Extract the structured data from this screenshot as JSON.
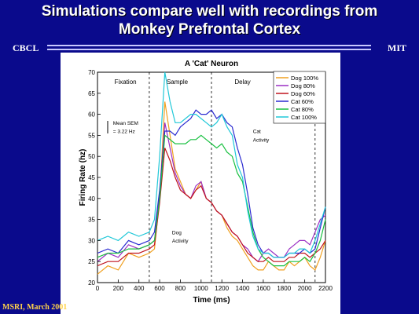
{
  "slide": {
    "title_line1": "Simulations compare well with recordings from",
    "title_line2": "Monkey Prefrontal Cortex",
    "left_brand": "CBCL",
    "right_brand": "MIT",
    "footer": "MSRI, March 2001",
    "colors": {
      "background": "#0a0a8c",
      "title": "#ffffff",
      "footer": "#ffd24a"
    }
  },
  "chart_data": {
    "type": "line",
    "title": "A 'Cat' Neuron",
    "xlabel": "Time (ms)",
    "ylabel": "Firing Rate (hz)",
    "xlim": [
      0,
      2200
    ],
    "ylim": [
      20,
      70
    ],
    "xticks": [
      0,
      200,
      400,
      600,
      800,
      1000,
      1200,
      1400,
      1600,
      1800,
      2000,
      2200
    ],
    "yticks": [
      20,
      25,
      30,
      35,
      40,
      45,
      50,
      55,
      60,
      65,
      70
    ],
    "grid": false,
    "legend": "top-right",
    "epochs": [
      {
        "label": "Fixation",
        "x": 270
      },
      {
        "label": "Sample",
        "x": 770
      },
      {
        "label": "Delay",
        "x": 1400
      }
    ],
    "boundaries": [
      500,
      1100,
      2100
    ],
    "annotations": [
      {
        "text": "Mean SEM",
        "x": 150,
        "y": 57.5
      },
      {
        "text": "= 3.22 Hz",
        "x": 150,
        "y": 55.5
      },
      {
        "text": "Cat",
        "x": 1500,
        "y": 55.5
      },
      {
        "text": "Activity",
        "x": 1500,
        "y": 53.5
      },
      {
        "text": "Dog",
        "x": 720,
        "y": 31.5
      },
      {
        "text": "Activity",
        "x": 720,
        "y": 29.5
      }
    ],
    "series": [
      {
        "name": "Dog 100%",
        "color": "#f0a020",
        "x": [
          0,
          100,
          200,
          300,
          400,
          500,
          550,
          600,
          650,
          700,
          750,
          800,
          850,
          900,
          950,
          1000,
          1050,
          1100,
          1150,
          1200,
          1250,
          1300,
          1350,
          1400,
          1450,
          1500,
          1550,
          1600,
          1650,
          1700,
          1750,
          1800,
          1850,
          1900,
          1950,
          2000,
          2050,
          2100,
          2150,
          2200
        ],
        "y": [
          22,
          24,
          23,
          27,
          26,
          27,
          28,
          40,
          63,
          55,
          47,
          44,
          41,
          40,
          42,
          44,
          40,
          39,
          37,
          36,
          33,
          31,
          30,
          28,
          26,
          24,
          23,
          23,
          25,
          24,
          23,
          23,
          25,
          24,
          25,
          26,
          24,
          23,
          26,
          30
        ]
      },
      {
        "name": "Dog 80%",
        "color": "#9a2fc4",
        "x": [
          0,
          100,
          200,
          300,
          400,
          500,
          550,
          600,
          650,
          700,
          750,
          800,
          850,
          900,
          950,
          1000,
          1050,
          1100,
          1150,
          1200,
          1250,
          1300,
          1350,
          1400,
          1450,
          1500,
          1550,
          1600,
          1650,
          1700,
          1750,
          1800,
          1850,
          1900,
          1950,
          2000,
          2050,
          2100,
          2150,
          2200
        ],
        "y": [
          25,
          27,
          26,
          29,
          28,
          29,
          30,
          41,
          58,
          52,
          46,
          43,
          41,
          40,
          43,
          44,
          40,
          39,
          37,
          36,
          34,
          32,
          31,
          29,
          28,
          26,
          25,
          27,
          28,
          27,
          26,
          26,
          28,
          29,
          30,
          30,
          29,
          32,
          35,
          36
        ]
      },
      {
        "name": "Dog 60%",
        "color": "#c0141e",
        "x": [
          0,
          100,
          200,
          300,
          400,
          500,
          550,
          600,
          650,
          700,
          750,
          800,
          850,
          900,
          950,
          1000,
          1050,
          1100,
          1150,
          1200,
          1250,
          1300,
          1350,
          1400,
          1450,
          1500,
          1550,
          1600,
          1650,
          1700,
          1750,
          1800,
          1850,
          1900,
          1950,
          2000,
          2050,
          2100,
          2150,
          2200
        ],
        "y": [
          24,
          25,
          25,
          27,
          27,
          28,
          29,
          39,
          52,
          49,
          45,
          42,
          41,
          40,
          42,
          43,
          40,
          39,
          37,
          36,
          34,
          32,
          31,
          29,
          27,
          26,
          25,
          25,
          26,
          25,
          25,
          25,
          26,
          26,
          27,
          27,
          26,
          27,
          28,
          30
        ]
      },
      {
        "name": "Cat 60%",
        "color": "#2a2ad0",
        "x": [
          0,
          100,
          200,
          300,
          400,
          500,
          550,
          600,
          650,
          700,
          750,
          800,
          850,
          900,
          950,
          1000,
          1050,
          1100,
          1150,
          1200,
          1250,
          1300,
          1350,
          1400,
          1450,
          1500,
          1550,
          1600,
          1650,
          1700,
          1750,
          1800,
          1850,
          1900,
          1950,
          2000,
          2050,
          2100,
          2150,
          2200
        ],
        "y": [
          27,
          28,
          27,
          30,
          29,
          30,
          32,
          42,
          56,
          56,
          55,
          57,
          58,
          59,
          61,
          60,
          60,
          61,
          59,
          60,
          58,
          57,
          52,
          48,
          41,
          33,
          29,
          27,
          27,
          26,
          26,
          26,
          27,
          27,
          27,
          28,
          27,
          28,
          33,
          38
        ]
      },
      {
        "name": "Cat 80%",
        "color": "#18c040",
        "x": [
          0,
          100,
          200,
          300,
          400,
          500,
          550,
          600,
          650,
          700,
          750,
          800,
          850,
          900,
          950,
          1000,
          1050,
          1100,
          1150,
          1200,
          1250,
          1300,
          1350,
          1400,
          1450,
          1500,
          1550,
          1600,
          1650,
          1700,
          1750,
          1800,
          1850,
          1900,
          1950,
          2000,
          2050,
          2100,
          2150,
          2200
        ],
        "y": [
          26,
          27,
          27,
          28,
          28,
          29,
          30,
          40,
          55,
          54,
          53,
          53,
          53,
          54,
          54,
          55,
          54,
          53,
          52,
          53,
          51,
          50,
          46,
          44,
          38,
          32,
          28,
          26,
          25,
          24,
          24,
          24,
          25,
          25,
          25,
          26,
          25,
          27,
          30,
          35
        ]
      },
      {
        "name": "Cat 100%",
        "color": "#20c8d8",
        "x": [
          0,
          100,
          200,
          300,
          400,
          500,
          550,
          600,
          650,
          700,
          750,
          800,
          850,
          900,
          950,
          1000,
          1050,
          1100,
          1150,
          1200,
          1250,
          1300,
          1350,
          1400,
          1450,
          1500,
          1550,
          1600,
          1650,
          1700,
          1750,
          1800,
          1850,
          1900,
          1950,
          2000,
          2050,
          2100,
          2150,
          2200
        ],
        "y": [
          30,
          31,
          30,
          32,
          31,
          32,
          35,
          50,
          70,
          63,
          58,
          58,
          59,
          60,
          60,
          59,
          58,
          57,
          58,
          60,
          57,
          55,
          48,
          45,
          37,
          31,
          28,
          27,
          27,
          26,
          26,
          26,
          27,
          27,
          28,
          28,
          27,
          30,
          34,
          38
        ]
      }
    ]
  }
}
